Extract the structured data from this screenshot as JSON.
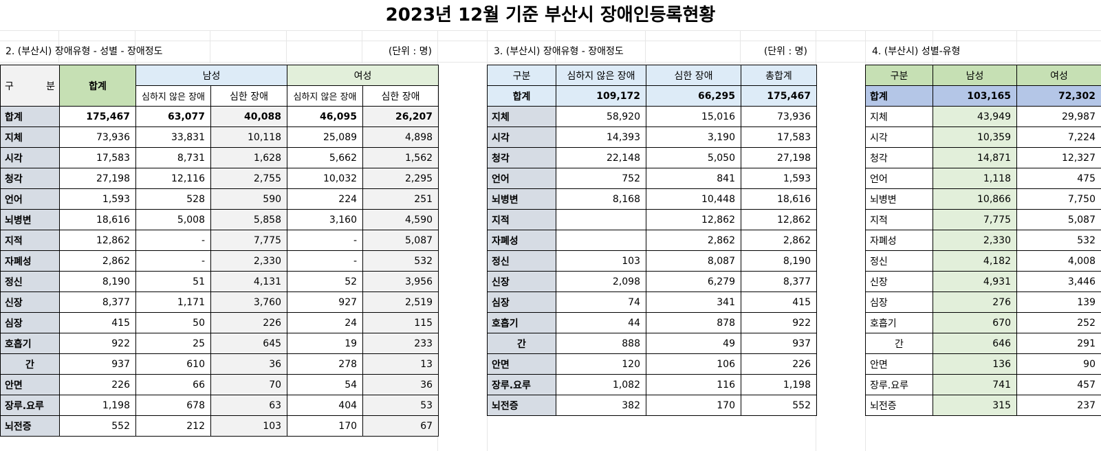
{
  "title": "2023년 12월 기준 부산시 장애인등록현황",
  "t2": {
    "section": "2. (부산시) 장애유형 - 성별 - 장애정도",
    "unit": "(단위 : 명)",
    "h_gubun": "구    분",
    "h_total": "합계",
    "h_male": "남성",
    "h_female": "여성",
    "h_mild": "심하지 않은 장애",
    "h_severe": "심한 장애",
    "rows": [
      {
        "label": "합계",
        "v": [
          "175,467",
          "63,077",
          "40,088",
          "46,095",
          "26,207"
        ]
      },
      {
        "label": "지체",
        "v": [
          "73,936",
          "33,831",
          "10,118",
          "25,089",
          "4,898"
        ]
      },
      {
        "label": "시각",
        "v": [
          "17,583",
          "8,731",
          "1,628",
          "5,662",
          "1,562"
        ]
      },
      {
        "label": "청각",
        "v": [
          "27,198",
          "12,116",
          "2,755",
          "10,032",
          "2,295"
        ]
      },
      {
        "label": "언어",
        "v": [
          "1,593",
          "528",
          "590",
          "224",
          "251"
        ]
      },
      {
        "label": "뇌병변",
        "v": [
          "18,616",
          "5,008",
          "5,858",
          "3,160",
          "4,590"
        ]
      },
      {
        "label": "지적",
        "v": [
          "12,862",
          "-",
          "7,775",
          "-",
          "5,087"
        ]
      },
      {
        "label": "자폐성",
        "v": [
          "2,862",
          "-",
          "2,330",
          "-",
          "532"
        ]
      },
      {
        "label": "정신",
        "v": [
          "8,190",
          "51",
          "4,131",
          "52",
          "3,956"
        ]
      },
      {
        "label": "신장",
        "v": [
          "8,377",
          "1,171",
          "3,760",
          "927",
          "2,519"
        ]
      },
      {
        "label": "심장",
        "v": [
          "415",
          "50",
          "226",
          "24",
          "115"
        ]
      },
      {
        "label": "호흡기",
        "v": [
          "922",
          "25",
          "645",
          "19",
          "233"
        ]
      },
      {
        "label": "간",
        "v": [
          "937",
          "610",
          "36",
          "278",
          "13"
        ]
      },
      {
        "label": "안면",
        "v": [
          "226",
          "66",
          "70",
          "54",
          "36"
        ]
      },
      {
        "label": "장루.요루",
        "v": [
          "1,198",
          "678",
          "63",
          "404",
          "53"
        ]
      },
      {
        "label": "뇌전증",
        "v": [
          "552",
          "212",
          "103",
          "170",
          "67"
        ]
      }
    ]
  },
  "t3": {
    "section": "3. (부산시) 장애유형 - 장애정도",
    "unit": "(단위 : 명)",
    "h_gubun": "구분",
    "h_mild": "심하지 않은 장애",
    "h_severe": "심한 장애",
    "h_total": "총합계",
    "total": {
      "label": "합계",
      "v": [
        "109,172",
        "66,295",
        "175,467"
      ]
    },
    "rows": [
      {
        "label": "지체",
        "v": [
          "58,920",
          "15,016",
          "73,936"
        ]
      },
      {
        "label": "시각",
        "v": [
          "14,393",
          "3,190",
          "17,583"
        ]
      },
      {
        "label": "청각",
        "v": [
          "22,148",
          "5,050",
          "27,198"
        ]
      },
      {
        "label": "언어",
        "v": [
          "752",
          "841",
          "1,593"
        ]
      },
      {
        "label": "뇌병변",
        "v": [
          "8,168",
          "10,448",
          "18,616"
        ]
      },
      {
        "label": "지적",
        "v": [
          "",
          "12,862",
          "12,862"
        ]
      },
      {
        "label": "자폐성",
        "v": [
          "",
          "2,862",
          "2,862"
        ]
      },
      {
        "label": "정신",
        "v": [
          "103",
          "8,087",
          "8,190"
        ]
      },
      {
        "label": "신장",
        "v": [
          "2,098",
          "6,279",
          "8,377"
        ]
      },
      {
        "label": "심장",
        "v": [
          "74",
          "341",
          "415"
        ]
      },
      {
        "label": "호흡기",
        "v": [
          "44",
          "878",
          "922"
        ]
      },
      {
        "label": "간",
        "v": [
          "888",
          "49",
          "937"
        ]
      },
      {
        "label": "안면",
        "v": [
          "120",
          "106",
          "226"
        ]
      },
      {
        "label": "장루.요루",
        "v": [
          "1,082",
          "116",
          "1,198"
        ]
      },
      {
        "label": "뇌전증",
        "v": [
          "382",
          "170",
          "552"
        ]
      }
    ]
  },
  "t4": {
    "section": "4. (부산시) 성별-유형",
    "h_gubun": "구분",
    "h_male": "남성",
    "h_female": "여성",
    "total": {
      "label": "합계",
      "v": [
        "103,165",
        "72,302"
      ]
    },
    "rows": [
      {
        "label": "지체",
        "v": [
          "43,949",
          "29,987"
        ]
      },
      {
        "label": "시각",
        "v": [
          "10,359",
          "7,224"
        ]
      },
      {
        "label": "청각",
        "v": [
          "14,871",
          "12,327"
        ]
      },
      {
        "label": "언어",
        "v": [
          "1,118",
          "475"
        ]
      },
      {
        "label": "뇌병변",
        "v": [
          "10,866",
          "7,750"
        ]
      },
      {
        "label": "지적",
        "v": [
          "7,775",
          "5,087"
        ]
      },
      {
        "label": "자폐성",
        "v": [
          "2,330",
          "532"
        ]
      },
      {
        "label": "정신",
        "v": [
          "4,182",
          "4,008"
        ]
      },
      {
        "label": "신장",
        "v": [
          "4,931",
          "3,446"
        ]
      },
      {
        "label": "심장",
        "v": [
          "276",
          "139"
        ]
      },
      {
        "label": "호흡기",
        "v": [
          "670",
          "252"
        ]
      },
      {
        "label": "간",
        "v": [
          "646",
          "291"
        ]
      },
      {
        "label": "안면",
        "v": [
          "136",
          "90"
        ]
      },
      {
        "label": "장루.요루",
        "v": [
          "741",
          "457"
        ]
      },
      {
        "label": "뇌전증",
        "v": [
          "315",
          "237"
        ]
      }
    ]
  }
}
